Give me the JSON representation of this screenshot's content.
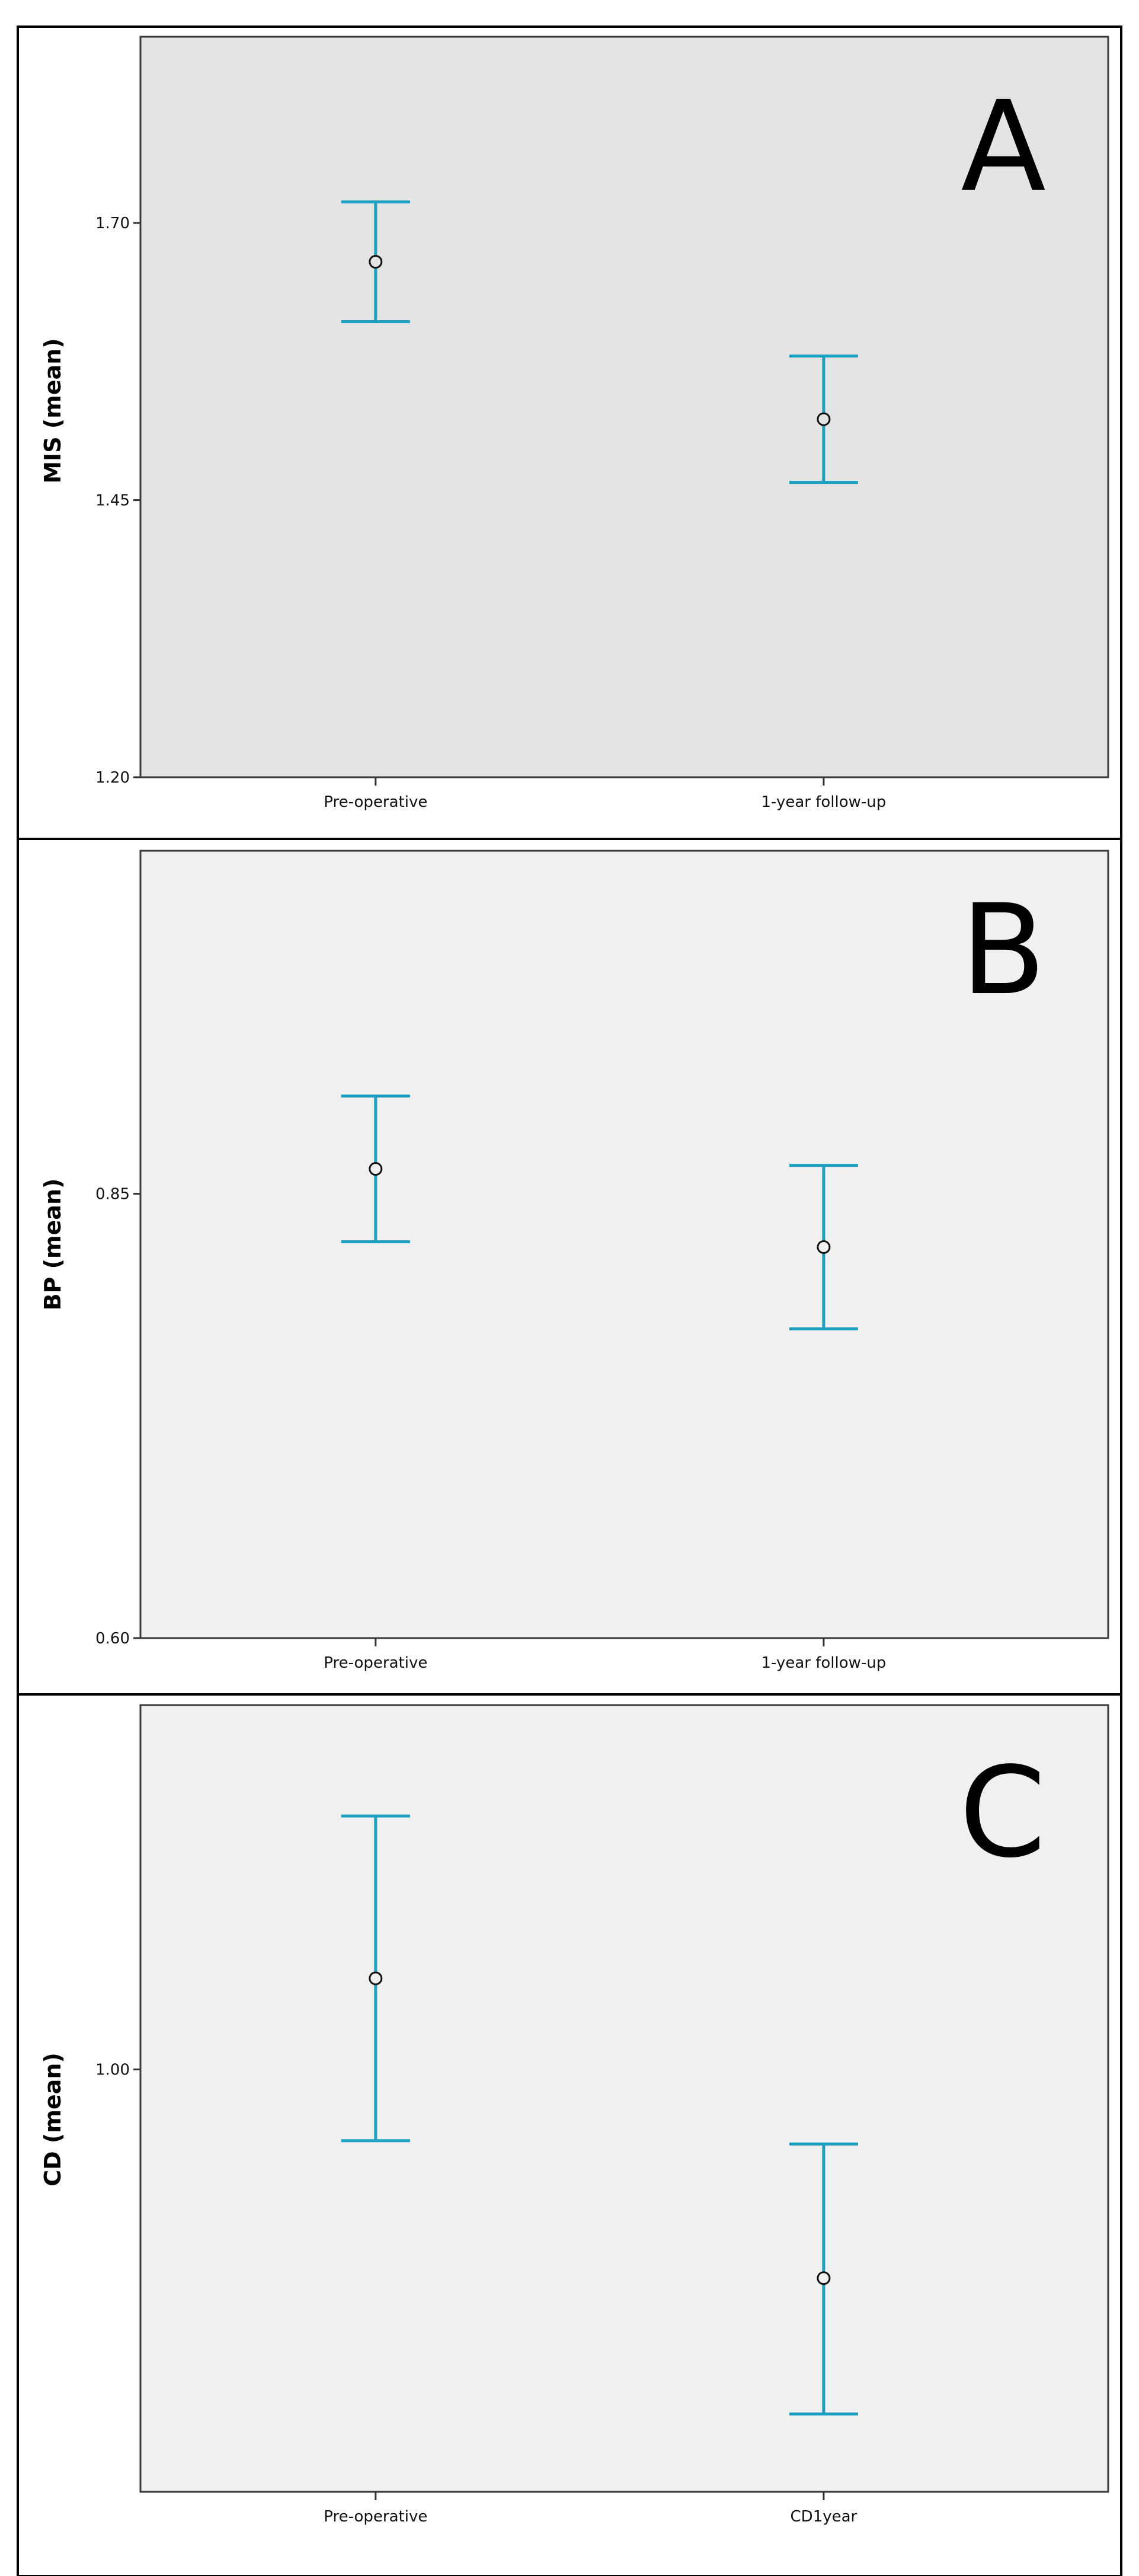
{
  "chart_data": [
    {
      "type": "errorbar",
      "panel_letter": "A",
      "ylabel": "MIS (mean)",
      "categories": [
        "Pre-operative",
        "1-year follow-up"
      ],
      "mean": [
        1.665,
        1.523
      ],
      "ci_low": [
        1.611,
        1.466
      ],
      "ci_high": [
        1.719,
        1.58
      ],
      "yticks": [
        "1.20",
        "1.45",
        "1.70"
      ],
      "ylim": [
        1.2,
        1.868
      ],
      "background": "#e4e4e4",
      "bar_color": "#1e9fbf"
    },
    {
      "type": "errorbar",
      "panel_letter": "B",
      "ylabel": "BP (mean)",
      "categories": [
        "Pre-operative",
        "1-year follow-up"
      ],
      "mean": [
        0.864,
        0.82
      ],
      "ci_low": [
        0.823,
        0.774
      ],
      "ci_high": [
        0.905,
        0.866
      ],
      "yticks": [
        "0.60",
        "0.85"
      ],
      "ylim": [
        0.6,
        1.043
      ],
      "background": "#f0f0f0",
      "bar_color": "#1e9fbf"
    },
    {
      "type": "errorbar",
      "panel_letter": "C",
      "ylabel": "CD (mean)",
      "categories": [
        "Pre-operative",
        "CD1year"
      ],
      "mean": [
        1.055,
        0.874
      ],
      "ci_low": [
        0.957,
        0.792
      ],
      "ci_high": [
        1.153,
        0.955
      ],
      "yticks": [
        "1.00"
      ],
      "ylim": [
        0.745,
        1.22
      ],
      "background": "#f0f0f0",
      "bar_color": "#1e9fbf"
    }
  ]
}
